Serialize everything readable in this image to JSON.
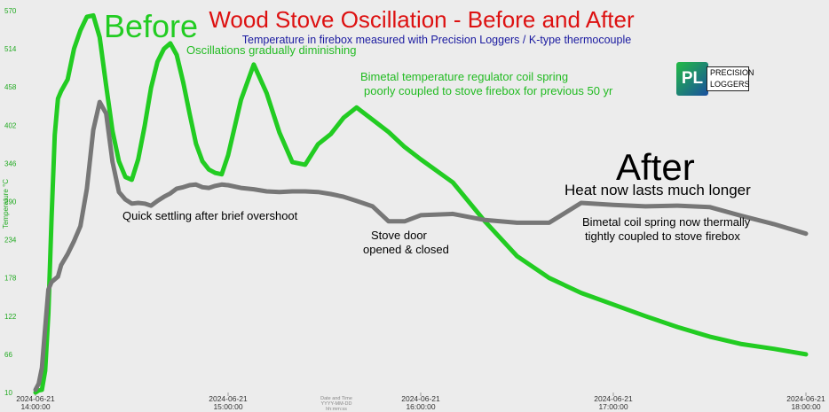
{
  "chart_data": {
    "type": "line",
    "title": "Wood Stove Oscillation - Before and After",
    "subtitle": "Temperature in firebox measured with Precision Loggers / K-type thermocouple",
    "y_label": "Temperature °C",
    "x_label": "Date and Time YYYY-MM-DD hh:mm:ss",
    "annotations": [
      "Before",
      "Oscillations gradually diminishing",
      "Bimetal temperature regulator coil spring",
      "poorly coupled to stove firebox for previous 50 yr",
      "After",
      "Heat now lasts much longer",
      "Quick settling after brief overshoot",
      "Stove door",
      "opened & closed",
      "Bimetal coil spring now thermally",
      "tightly coupled to stove firebox"
    ],
    "logo": {
      "mark": "PL",
      "line1": "PRECISION",
      "line2": "LOGGERS"
    },
    "x": [
      "2024-06-21 14:00:00",
      "2024-06-21 14:01:00",
      "2024-06-21 14:02:00",
      "2024-06-21 14:03:00",
      "2024-06-21 14:04:00",
      "2024-06-21 14:05:00",
      "2024-06-21 14:06:00",
      "2024-06-21 14:07:00",
      "2024-06-21 14:08:00",
      "2024-06-21 14:10:00",
      "2024-06-21 14:12:00",
      "2024-06-21 14:14:00",
      "2024-06-21 14:16:00",
      "2024-06-21 14:18:00",
      "2024-06-21 14:20:00",
      "2024-06-21 14:22:00",
      "2024-06-21 14:24:00",
      "2024-06-21 14:26:00",
      "2024-06-21 14:28:00",
      "2024-06-21 14:30:00",
      "2024-06-21 14:32:00",
      "2024-06-21 14:34:00",
      "2024-06-21 14:36:00",
      "2024-06-21 14:38:00",
      "2024-06-21 14:40:00",
      "2024-06-21 14:42:00",
      "2024-06-21 14:44:00",
      "2024-06-21 14:46:00",
      "2024-06-21 14:48:00",
      "2024-06-21 14:50:00",
      "2024-06-21 14:52:00",
      "2024-06-21 14:54:00",
      "2024-06-21 14:56:00",
      "2024-06-21 14:58:00",
      "2024-06-21 15:00:00",
      "2024-06-21 15:04:00",
      "2024-06-21 15:08:00",
      "2024-06-21 15:12:00",
      "2024-06-21 15:16:00",
      "2024-06-21 15:20:00",
      "2024-06-21 15:24:00",
      "2024-06-21 15:28:00",
      "2024-06-21 15:32:00",
      "2024-06-21 15:36:00",
      "2024-06-21 15:40:00",
      "2024-06-21 15:45:00",
      "2024-06-21 15:50:00",
      "2024-06-21 15:55:00",
      "2024-06-21 16:00:00",
      "2024-06-21 16:10:00",
      "2024-06-21 16:20:00",
      "2024-06-21 16:30:00",
      "2024-06-21 16:40:00",
      "2024-06-21 16:50:00",
      "2024-06-21 17:00:00",
      "2024-06-21 17:10:00",
      "2024-06-21 17:20:00",
      "2024-06-21 17:30:00",
      "2024-06-21 17:40:00",
      "2024-06-21 17:50:00",
      "2024-06-21 18:00:00"
    ],
    "series": [
      {
        "name": "Before",
        "color": "#22cc22",
        "values": [
          10,
          13,
          14,
          42,
          126,
          266,
          388,
          441,
          452,
          469,
          514,
          541,
          561,
          563,
          531,
          460,
          393,
          349,
          326,
          322,
          352,
          401,
          457,
          495,
          514,
          522,
          505,
          465,
          419,
          375,
          349,
          337,
          332,
          330,
          358,
          439,
          491,
          449,
          391,
          348,
          344,
          374,
          389,
          413,
          428,
          410,
          392,
          370,
          352,
          318,
          261,
          210,
          178,
          156,
          139,
          122,
          106,
          92,
          81,
          74,
          66
        ]
      },
      {
        "name": "After",
        "color": "#777777",
        "values": [
          14,
          23,
          46,
          105,
          161,
          172,
          176,
          180,
          197,
          213,
          232,
          254,
          309,
          395,
          436,
          419,
          348,
          304,
          293,
          287,
          288,
          287,
          284,
          291,
          297,
          302,
          309,
          311,
          314,
          315,
          311,
          310,
          313,
          315,
          314,
          310,
          308,
          305,
          304,
          305,
          305,
          304,
          301,
          297,
          291,
          283,
          261,
          261,
          270,
          272,
          263,
          259,
          259,
          288,
          285,
          283,
          284,
          282,
          269,
          257,
          243
        ]
      }
    ],
    "xlim": [
      "2024-06-21 14:00:00",
      "2024-06-21 18:00:00"
    ],
    "xticks": [
      "2024-06-21 14:00:00",
      "2024-06-21 15:00:00",
      "2024-06-21 16:00:00",
      "2024-06-21 17:00:00",
      "2024-06-21 18:00:00"
    ],
    "ylim": [
      10,
      570
    ],
    "yticks": [
      10,
      66,
      122,
      178,
      234,
      290,
      346,
      402,
      458,
      514,
      570
    ],
    "grid": false
  }
}
